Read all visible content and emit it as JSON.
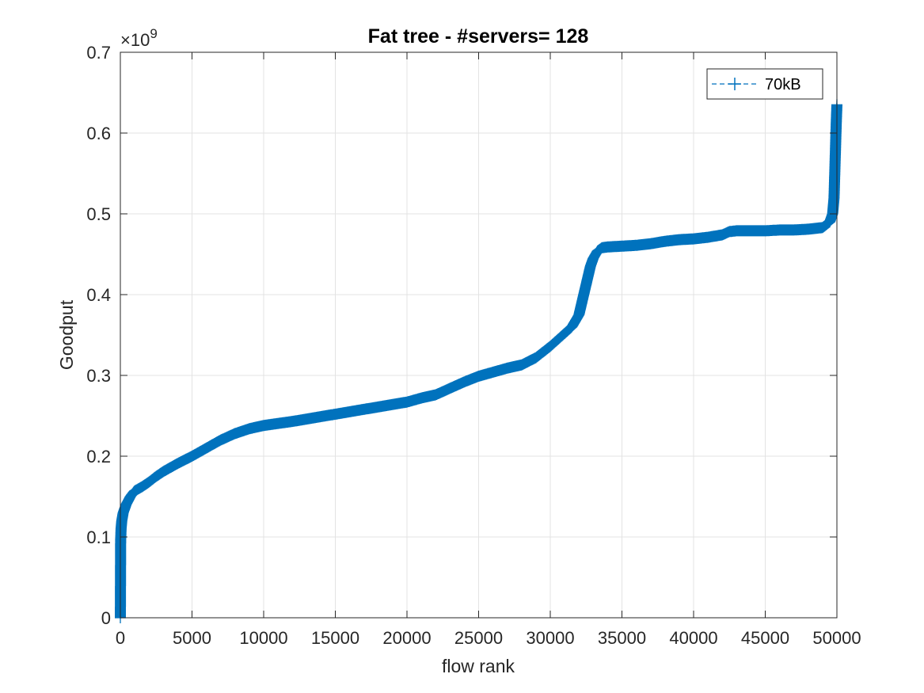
{
  "chart_data": {
    "type": "line",
    "title": "Fat tree - #servers= 128",
    "xlabel": "flow rank",
    "ylabel": "Goodput",
    "y_exponent_label": "×10",
    "y_exponent_power": "9",
    "xlim": [
      0,
      50000
    ],
    "ylim": [
      0,
      0.7
    ],
    "x_ticks": [
      0,
      5000,
      10000,
      15000,
      20000,
      25000,
      30000,
      35000,
      40000,
      45000,
      50000
    ],
    "x_tick_labels": [
      "0",
      "5000",
      "10000",
      "15000",
      "20000",
      "25000",
      "30000",
      "35000",
      "40000",
      "45000",
      "50000"
    ],
    "y_ticks": [
      0,
      0.1,
      0.2,
      0.3,
      0.4,
      0.5,
      0.6,
      0.7
    ],
    "y_tick_labels": [
      "0",
      "0.1",
      "0.2",
      "0.3",
      "0.4",
      "0.5",
      "0.6",
      "0.7"
    ],
    "grid": true,
    "legend_position": "top-right",
    "color": "#0072BD",
    "series": [
      {
        "name": "70kB",
        "marker": "+",
        "line_style": "dashed",
        "x": [
          0,
          20,
          50,
          100,
          200,
          400,
          700,
          1000,
          1500,
          2000,
          2500,
          3000,
          4000,
          5000,
          6000,
          7000,
          8000,
          9000,
          10000,
          12000,
          14000,
          16000,
          18000,
          20000,
          21000,
          22000,
          23000,
          24000,
          25000,
          26000,
          27000,
          28000,
          29000,
          30000,
          31000,
          31500,
          32000,
          32200,
          32400,
          32600,
          32800,
          33000,
          33300,
          33600,
          34000,
          35000,
          36000,
          37000,
          38000,
          39000,
          40000,
          41000,
          42000,
          42500,
          43000,
          44000,
          45000,
          46000,
          47000,
          48000,
          49000,
          49500,
          49700,
          49800,
          49850,
          49900,
          49950,
          50000
        ],
        "y": [
          0.0,
          0.095,
          0.11,
          0.12,
          0.13,
          0.14,
          0.15,
          0.157,
          0.162,
          0.168,
          0.175,
          0.181,
          0.191,
          0.2,
          0.21,
          0.22,
          0.228,
          0.234,
          0.238,
          0.243,
          0.249,
          0.255,
          0.261,
          0.267,
          0.272,
          0.276,
          0.284,
          0.292,
          0.299,
          0.304,
          0.309,
          0.313,
          0.322,
          0.336,
          0.352,
          0.36,
          0.375,
          0.39,
          0.405,
          0.42,
          0.435,
          0.445,
          0.454,
          0.458,
          0.459,
          0.46,
          0.461,
          0.463,
          0.466,
          0.468,
          0.469,
          0.471,
          0.474,
          0.478,
          0.479,
          0.479,
          0.479,
          0.48,
          0.48,
          0.481,
          0.483,
          0.49,
          0.5,
          0.52,
          0.55,
          0.58,
          0.61,
          0.635
        ]
      }
    ]
  }
}
